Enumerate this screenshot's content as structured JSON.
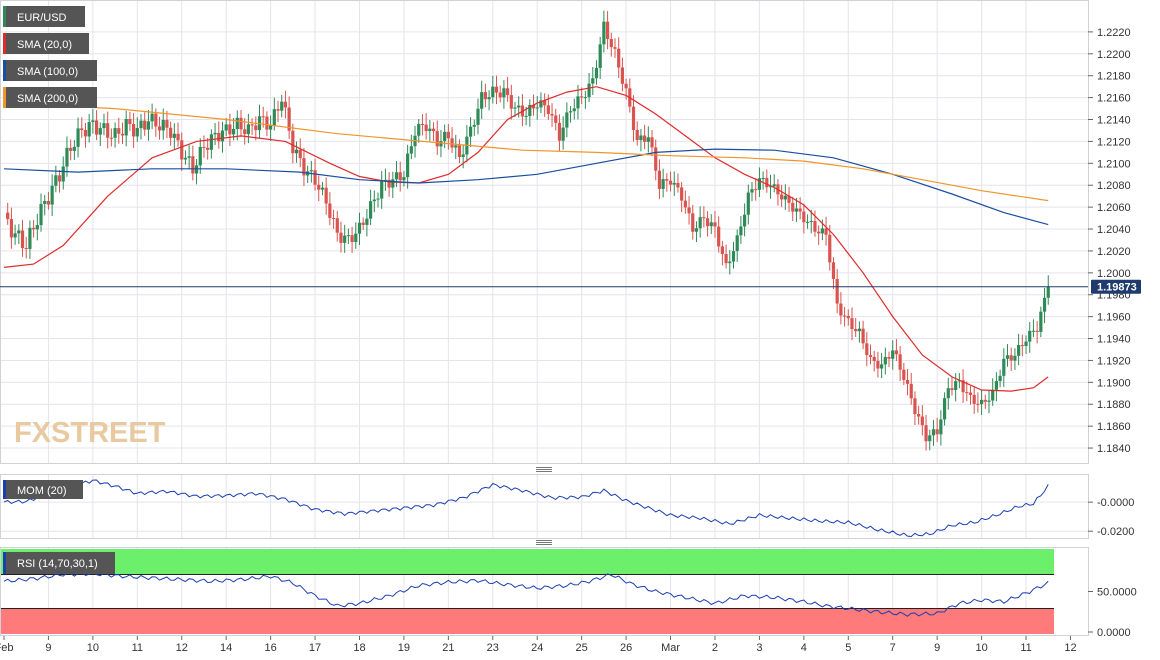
{
  "chart_data": {
    "type": "candlestick",
    "symbol": "EUR/USD",
    "last_price": "1.19873",
    "last_value": 1.19873,
    "price_axis": {
      "ylim": [
        1.183,
        1.224
      ],
      "ticks": [
        "1.1840",
        "1.1860",
        "1.1880",
        "1.1900",
        "1.1920",
        "1.1940",
        "1.1960",
        "1.1980",
        "1.2000",
        "1.2020",
        "1.2040",
        "1.2060",
        "1.2080",
        "1.2100",
        "1.2120",
        "1.2140",
        "1.2160",
        "1.2180",
        "1.2200",
        "1.2220"
      ]
    },
    "x_axis": {
      "labels": [
        {
          "text": "Feb",
          "bar": 0
        },
        {
          "text": "9",
          "bar": 12
        },
        {
          "text": "10",
          "bar": 24
        },
        {
          "text": "11",
          "bar": 36
        },
        {
          "text": "12",
          "bar": 48
        },
        {
          "text": "14",
          "bar": 60
        },
        {
          "text": "16",
          "bar": 72
        },
        {
          "text": "17",
          "bar": 84
        },
        {
          "text": "18",
          "bar": 96
        },
        {
          "text": "19",
          "bar": 108
        },
        {
          "text": "21",
          "bar": 120
        },
        {
          "text": "23",
          "bar": 132
        },
        {
          "text": "24",
          "bar": 144
        },
        {
          "text": "25",
          "bar": 156
        },
        {
          "text": "26",
          "bar": 168
        },
        {
          "text": "Mar",
          "bar": 180
        },
        {
          "text": "2",
          "bar": 192
        },
        {
          "text": "3",
          "bar": 204
        },
        {
          "text": "4",
          "bar": 216
        },
        {
          "text": "5",
          "bar": 228
        },
        {
          "text": "7",
          "bar": 240
        },
        {
          "text": "9",
          "bar": 252
        },
        {
          "text": "10",
          "bar": 264
        },
        {
          "text": "11",
          "bar": 276
        },
        {
          "text": "12",
          "bar": 288
        }
      ],
      "grid_bars": [
        12,
        24,
        36,
        48,
        60,
        72,
        84,
        96,
        108,
        120,
        132,
        144,
        156,
        168,
        180,
        192,
        204,
        216,
        228,
        240,
        252,
        264,
        276
      ]
    },
    "anchors": [
      [
        0,
        1.205
      ],
      [
        3,
        1.2035
      ],
      [
        6,
        1.2025
      ],
      [
        9,
        1.205
      ],
      [
        12,
        1.207
      ],
      [
        15,
        1.209
      ],
      [
        18,
        1.2115
      ],
      [
        21,
        1.213
      ],
      [
        24,
        1.2135
      ],
      [
        27,
        1.213
      ],
      [
        30,
        1.2125
      ],
      [
        33,
        1.2135
      ],
      [
        36,
        1.213
      ],
      [
        39,
        1.214
      ],
      [
        42,
        1.2135
      ],
      [
        45,
        1.213
      ],
      [
        48,
        1.211
      ],
      [
        51,
        1.2095
      ],
      [
        54,
        1.2115
      ],
      [
        57,
        1.2125
      ],
      [
        60,
        1.213
      ],
      [
        63,
        1.2135
      ],
      [
        66,
        1.213
      ],
      [
        69,
        1.214
      ],
      [
        72,
        1.2135
      ],
      [
        75,
        1.216
      ],
      [
        78,
        1.2115
      ],
      [
        81,
        1.2095
      ],
      [
        84,
        1.2085
      ],
      [
        87,
        1.2065
      ],
      [
        90,
        1.2035
      ],
      [
        93,
        1.203
      ],
      [
        96,
        1.204
      ],
      [
        99,
        1.206
      ],
      [
        102,
        1.208
      ],
      [
        105,
        1.2085
      ],
      [
        108,
        1.209
      ],
      [
        111,
        1.213
      ],
      [
        114,
        1.2135
      ],
      [
        117,
        1.212
      ],
      [
        120,
        1.2125
      ],
      [
        123,
        1.2105
      ],
      [
        126,
        1.213
      ],
      [
        129,
        1.216
      ],
      [
        132,
        1.2165
      ],
      [
        135,
        1.2165
      ],
      [
        138,
        1.215
      ],
      [
        141,
        1.2145
      ],
      [
        144,
        1.2155
      ],
      [
        147,
        1.215
      ],
      [
        150,
        1.2125
      ],
      [
        153,
        1.215
      ],
      [
        156,
        1.216
      ],
      [
        159,
        1.2175
      ],
      [
        162,
        1.2225
      ],
      [
        165,
        1.22
      ],
      [
        168,
        1.2165
      ],
      [
        171,
        1.212
      ],
      [
        174,
        1.2125
      ],
      [
        177,
        1.208
      ],
      [
        180,
        1.2085
      ],
      [
        183,
        1.207
      ],
      [
        186,
        1.204
      ],
      [
        189,
        1.205
      ],
      [
        192,
        1.204
      ],
      [
        195,
        1.2005
      ],
      [
        198,
        1.203
      ],
      [
        201,
        1.207
      ],
      [
        204,
        1.2085
      ],
      [
        207,
        1.208
      ],
      [
        210,
        1.207
      ],
      [
        213,
        1.206
      ],
      [
        216,
        1.205
      ],
      [
        219,
        1.204
      ],
      [
        222,
        1.2035
      ],
      [
        225,
        1.197
      ],
      [
        228,
        1.1955
      ],
      [
        231,
        1.1945
      ],
      [
        234,
        1.192
      ],
      [
        237,
        1.1915
      ],
      [
        240,
        1.193
      ],
      [
        243,
        1.1905
      ],
      [
        246,
        1.1875
      ],
      [
        249,
        1.185
      ],
      [
        252,
        1.1855
      ],
      [
        255,
        1.1895
      ],
      [
        258,
        1.19
      ],
      [
        261,
        1.1885
      ],
      [
        264,
        1.188
      ],
      [
        267,
        1.189
      ],
      [
        270,
        1.192
      ],
      [
        273,
        1.1925
      ],
      [
        276,
        1.194
      ],
      [
        279,
        1.195
      ],
      [
        282,
        1.1987
      ]
    ],
    "sma": [
      {
        "name": "SMA (20,0)",
        "color": "#e02a2a",
        "points": [
          [
            0,
            1.2005
          ],
          [
            8,
            1.2008
          ],
          [
            16,
            1.2025
          ],
          [
            28,
            1.207
          ],
          [
            40,
            1.2105
          ],
          [
            52,
            1.212
          ],
          [
            64,
            1.2125
          ],
          [
            76,
            1.212
          ],
          [
            88,
            1.21
          ],
          [
            96,
            1.2088
          ],
          [
            104,
            1.2083
          ],
          [
            112,
            1.2082
          ],
          [
            120,
            1.209
          ],
          [
            128,
            1.211
          ],
          [
            136,
            1.214
          ],
          [
            144,
            1.2155
          ],
          [
            152,
            1.2165
          ],
          [
            160,
            1.217
          ],
          [
            168,
            1.2162
          ],
          [
            176,
            1.2145
          ],
          [
            184,
            1.2125
          ],
          [
            192,
            1.2105
          ],
          [
            200,
            1.209
          ],
          [
            208,
            1.2078
          ],
          [
            216,
            1.2062
          ],
          [
            224,
            1.2035
          ],
          [
            232,
            1.2
          ],
          [
            240,
            1.196
          ],
          [
            248,
            1.1925
          ],
          [
            256,
            1.1905
          ],
          [
            264,
            1.1893
          ],
          [
            272,
            1.1892
          ],
          [
            278,
            1.1895
          ],
          [
            282,
            1.1905
          ]
        ]
      },
      {
        "name": "SMA (100,0)",
        "color": "#1a4fa0",
        "points": [
          [
            0,
            1.2095
          ],
          [
            20,
            1.2092
          ],
          [
            40,
            1.2095
          ],
          [
            60,
            1.2095
          ],
          [
            80,
            1.2092
          ],
          [
            96,
            1.2085
          ],
          [
            112,
            1.2082
          ],
          [
            128,
            1.2085
          ],
          [
            144,
            1.209
          ],
          [
            160,
            1.21
          ],
          [
            176,
            1.211
          ],
          [
            192,
            1.2113
          ],
          [
            208,
            1.2112
          ],
          [
            224,
            1.2105
          ],
          [
            240,
            1.209
          ],
          [
            256,
            1.2072
          ],
          [
            270,
            1.2055
          ],
          [
            282,
            1.2044
          ]
        ]
      },
      {
        "name": "SMA (200,0)",
        "color": "#f0952a",
        "points": [
          [
            0,
            1.2155
          ],
          [
            30,
            1.215
          ],
          [
            60,
            1.214
          ],
          [
            90,
            1.2127
          ],
          [
            120,
            1.2118
          ],
          [
            140,
            1.2112
          ],
          [
            160,
            1.211
          ],
          [
            180,
            1.2107
          ],
          [
            200,
            1.2105
          ],
          [
            216,
            1.2102
          ],
          [
            232,
            1.2095
          ],
          [
            248,
            1.2085
          ],
          [
            264,
            1.2075
          ],
          [
            282,
            1.2066
          ]
        ]
      }
    ],
    "mom": {
      "name": "MOM (20)",
      "ticks": [
        "-0.0000",
        "-0.0200"
      ],
      "ylim": [
        -0.024,
        0.018
      ],
      "points": [
        [
          0,
          0.0
        ],
        [
          6,
          0.0005
        ],
        [
          10,
          0.004
        ],
        [
          16,
          0.009
        ],
        [
          24,
          0.015
        ],
        [
          30,
          0.011
        ],
        [
          36,
          0.006
        ],
        [
          44,
          0.0075
        ],
        [
          52,
          0.004
        ],
        [
          60,
          0.0045
        ],
        [
          68,
          0.006
        ],
        [
          76,
          0.002
        ],
        [
          84,
          -0.005
        ],
        [
          92,
          -0.008
        ],
        [
          100,
          -0.006
        ],
        [
          108,
          -0.004
        ],
        [
          116,
          -0.002
        ],
        [
          124,
          0.003
        ],
        [
          132,
          0.012
        ],
        [
          140,
          0.008
        ],
        [
          148,
          0.003
        ],
        [
          156,
          0.0035
        ],
        [
          162,
          0.008
        ],
        [
          168,
          0.001
        ],
        [
          174,
          -0.004
        ],
        [
          180,
          -0.009
        ],
        [
          188,
          -0.011
        ],
        [
          196,
          -0.015
        ],
        [
          204,
          -0.009
        ],
        [
          212,
          -0.011
        ],
        [
          220,
          -0.013
        ],
        [
          228,
          -0.014
        ],
        [
          236,
          -0.019
        ],
        [
          244,
          -0.023
        ],
        [
          250,
          -0.022
        ],
        [
          256,
          -0.016
        ],
        [
          262,
          -0.014
        ],
        [
          268,
          -0.009
        ],
        [
          274,
          -0.003
        ],
        [
          278,
          -0.001
        ],
        [
          282,
          0.011
        ]
      ]
    },
    "rsi": {
      "name": "RSI (14,70,30,1)",
      "ticks": [
        "50.0000",
        "0.0000"
      ],
      "ylim": [
        0,
        100
      ],
      "overbought": 70,
      "oversold": 30,
      "points": [
        [
          0,
          62
        ],
        [
          8,
          65
        ],
        [
          16,
          70
        ],
        [
          24,
          71
        ],
        [
          32,
          68
        ],
        [
          40,
          66
        ],
        [
          48,
          64
        ],
        [
          56,
          62
        ],
        [
          64,
          64
        ],
        [
          72,
          68
        ],
        [
          78,
          60
        ],
        [
          84,
          45
        ],
        [
          90,
          33
        ],
        [
          96,
          36
        ],
        [
          104,
          45
        ],
        [
          112,
          57
        ],
        [
          120,
          61
        ],
        [
          128,
          63
        ],
        [
          136,
          58
        ],
        [
          144,
          54
        ],
        [
          152,
          57
        ],
        [
          158,
          62
        ],
        [
          164,
          70
        ],
        [
          170,
          58
        ],
        [
          176,
          50
        ],
        [
          184,
          43
        ],
        [
          192,
          36
        ],
        [
          200,
          45
        ],
        [
          208,
          43
        ],
        [
          216,
          38
        ],
        [
          222,
          33
        ],
        [
          228,
          30
        ],
        [
          236,
          26
        ],
        [
          244,
          23
        ],
        [
          252,
          24
        ],
        [
          258,
          36
        ],
        [
          264,
          40
        ],
        [
          270,
          38
        ],
        [
          276,
          48
        ],
        [
          282,
          60
        ]
      ]
    },
    "legend": [
      {
        "label": "EUR/USD",
        "color": "#2e8b57"
      },
      {
        "label": "SMA (20,0)",
        "color": "#e02a2a"
      },
      {
        "label": "SMA (100,0)",
        "color": "#1a4fa0"
      },
      {
        "label": "SMA (200,0)",
        "color": "#f0952a"
      }
    ],
    "watermark": "FXSTREET",
    "colors": {
      "up": "#2e8b57",
      "down": "#d9534f",
      "grid": "#e4e4ec",
      "axis": "#666666",
      "rsi_overbought": "#6cf06c",
      "rsi_oversold": "#ff7a7a",
      "last_price_bg": "#1f3b6e",
      "legend_bg": "#555555"
    }
  }
}
